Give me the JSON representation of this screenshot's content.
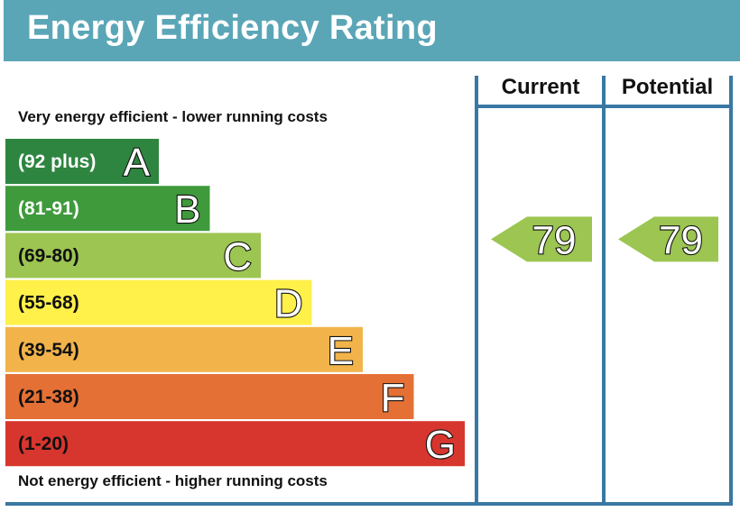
{
  "title": "Energy Efficiency Rating",
  "top_note": "Very energy efficient - lower running costs",
  "bottom_note": "Not energy efficient - higher running costs",
  "columns": {
    "current": "Current",
    "potential": "Potential"
  },
  "colors": {
    "header_bg": "#5aa6b7",
    "frame": "#3a78a4",
    "arrow": "#9cc552"
  },
  "chart_data": {
    "type": "bar",
    "bands": [
      {
        "letter": "A",
        "range": "(92 plus)",
        "color": "#2e8540"
      },
      {
        "letter": "B",
        "range": "(81-91)",
        "color": "#3f9a3c"
      },
      {
        "letter": "C",
        "range": "(69-80)",
        "color": "#9cc552"
      },
      {
        "letter": "D",
        "range": "(55-68)",
        "color": "#fff04a"
      },
      {
        "letter": "E",
        "range": "(39-54)",
        "color": "#f2b44a"
      },
      {
        "letter": "F",
        "range": "(21-38)",
        "color": "#e57035"
      },
      {
        "letter": "G",
        "range": "(1-20)",
        "color": "#d7362e"
      }
    ],
    "current": {
      "value": 79,
      "band": "C"
    },
    "potential": {
      "value": 79,
      "band": "C"
    }
  }
}
